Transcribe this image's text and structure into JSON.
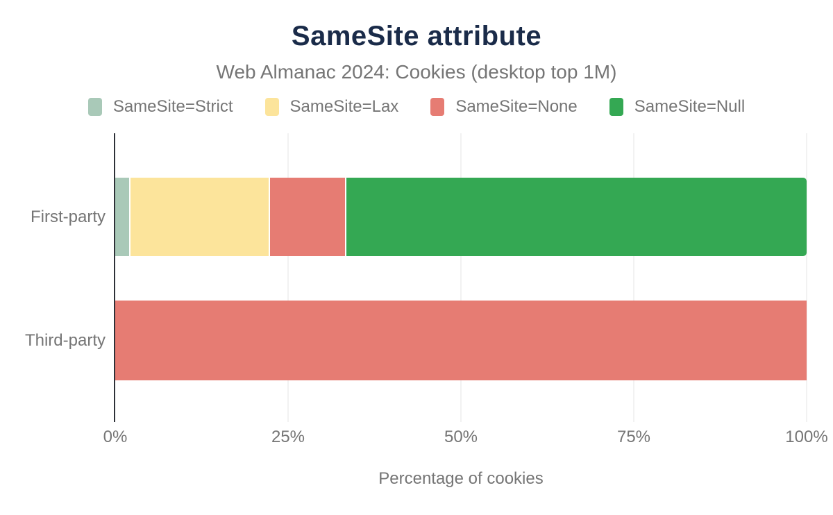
{
  "header": {
    "title": "SameSite attribute",
    "subtitle": "Web Almanac 2024: Cookies (desktop top 1M)"
  },
  "legend": [
    {
      "label": "SameSite=Strict",
      "icon": "swatch-strict-icon",
      "color": "#a9c9b8"
    },
    {
      "label": "SameSite=Lax",
      "icon": "swatch-lax-icon",
      "color": "#fce49b"
    },
    {
      "label": "SameSite=None",
      "icon": "swatch-none-icon",
      "color": "#e67c73"
    },
    {
      "label": "SameSite=Null",
      "icon": "swatch-null-icon",
      "color": "#34a853"
    }
  ],
  "chart_data": {
    "type": "bar",
    "orientation": "horizontal-stacked",
    "title": "SameSite attribute",
    "subtitle": "Web Almanac 2024: Cookies (desktop top 1M)",
    "categories": [
      "First-party",
      "Third-party"
    ],
    "series": [
      {
        "name": "SameSite=Strict",
        "color": "#a9c9b8",
        "values": [
          2.0,
          0
        ]
      },
      {
        "name": "SameSite=Lax",
        "color": "#fce49b",
        "values": [
          20.2,
          0
        ]
      },
      {
        "name": "SameSite=None",
        "color": "#e67c73",
        "values": [
          11.0,
          100
        ]
      },
      {
        "name": "SameSite=Null",
        "color": "#34a853",
        "values": [
          66.8,
          0
        ]
      }
    ],
    "xlabel": "Percentage of cookies",
    "ylabel": "",
    "xlim": [
      0,
      100
    ],
    "xticks": [
      "0%",
      "25%",
      "50%",
      "75%",
      "100%"
    ],
    "xtick_values": [
      0,
      25,
      50,
      75,
      100
    ],
    "grid": true,
    "legend_position": "top"
  },
  "colors": {
    "title_text": "#1a2b49",
    "muted_text": "#757575",
    "axis_line": "#2e3138",
    "gridline": "#f2f2f2",
    "background": "#ffffff"
  }
}
